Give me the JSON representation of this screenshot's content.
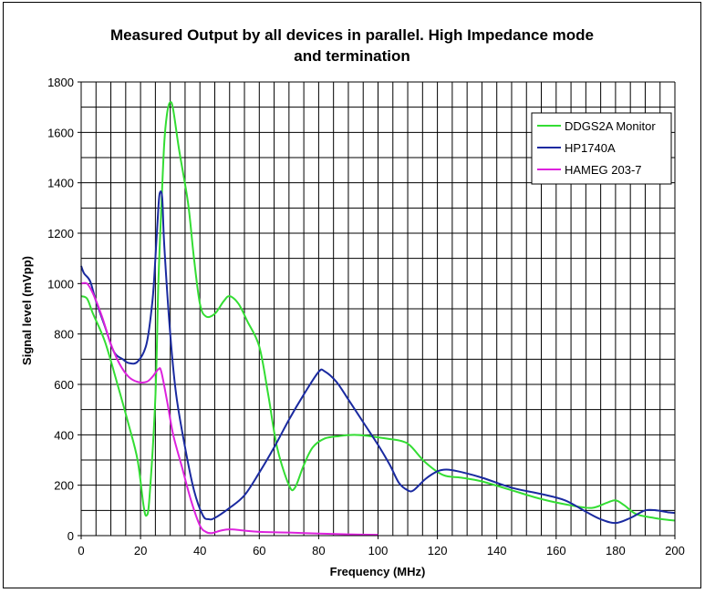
{
  "chart_data": {
    "type": "line",
    "title_line1": "Measured Output by all devices in parallel. High Impedance mode",
    "title_line2": "and termination",
    "xlabel": "Frequency (MHz)",
    "ylabel": "Signal level (mVpp)",
    "xlim": [
      0,
      200
    ],
    "ylim": [
      0,
      1800
    ],
    "xticks": [
      0,
      20,
      40,
      60,
      80,
      100,
      120,
      140,
      160,
      180,
      200
    ],
    "yticks": [
      0,
      200,
      400,
      600,
      800,
      1000,
      1200,
      1400,
      1600,
      1800
    ],
    "grid": true,
    "legend_position": "top-right",
    "series": [
      {
        "name": "DDGS2A Monitor",
        "color": "#33dd33",
        "points": [
          [
            0,
            950
          ],
          [
            2,
            940
          ],
          [
            4,
            880
          ],
          [
            8,
            770
          ],
          [
            12,
            610
          ],
          [
            16,
            440
          ],
          [
            19,
            300
          ],
          [
            21,
            120
          ],
          [
            22,
            80
          ],
          [
            23,
            150
          ],
          [
            25,
            550
          ],
          [
            26,
            1000
          ],
          [
            27,
            1300
          ],
          [
            28,
            1560
          ],
          [
            29,
            1680
          ],
          [
            30,
            1720
          ],
          [
            31,
            1690
          ],
          [
            33,
            1530
          ],
          [
            36,
            1320
          ],
          [
            38,
            1100
          ],
          [
            40,
            920
          ],
          [
            42,
            870
          ],
          [
            45,
            880
          ],
          [
            48,
            930
          ],
          [
            50,
            950
          ],
          [
            53,
            920
          ],
          [
            56,
            850
          ],
          [
            60,
            750
          ],
          [
            63,
            560
          ],
          [
            66,
            350
          ],
          [
            70,
            200
          ],
          [
            72,
            190
          ],
          [
            75,
            280
          ],
          [
            78,
            350
          ],
          [
            82,
            385
          ],
          [
            87,
            395
          ],
          [
            92,
            400
          ],
          [
            97,
            395
          ],
          [
            103,
            385
          ],
          [
            108,
            375
          ],
          [
            111,
            355
          ],
          [
            116,
            290
          ],
          [
            122,
            240
          ],
          [
            128,
            230
          ],
          [
            135,
            215
          ],
          [
            145,
            180
          ],
          [
            155,
            145
          ],
          [
            165,
            120
          ],
          [
            172,
            110
          ],
          [
            177,
            130
          ],
          [
            180,
            140
          ],
          [
            183,
            120
          ],
          [
            187,
            85
          ],
          [
            193,
            70
          ],
          [
            198,
            62
          ],
          [
            200,
            60
          ]
        ]
      },
      {
        "name": "HP1740A",
        "color": "#1a2aa0",
        "points": [
          [
            0,
            1070
          ],
          [
            1,
            1040
          ],
          [
            3,
            1010
          ],
          [
            5,
            930
          ],
          [
            8,
            830
          ],
          [
            11,
            730
          ],
          [
            14,
            700
          ],
          [
            16,
            685
          ],
          [
            19,
            690
          ],
          [
            22,
            760
          ],
          [
            24,
            930
          ],
          [
            25,
            1100
          ],
          [
            26,
            1300
          ],
          [
            26.5,
            1360
          ],
          [
            27.3,
            1340
          ],
          [
            28,
            1150
          ],
          [
            30,
            800
          ],
          [
            32,
            560
          ],
          [
            35,
            350
          ],
          [
            38,
            180
          ],
          [
            41,
            80
          ],
          [
            43,
            65
          ],
          [
            45,
            70
          ],
          [
            50,
            110
          ],
          [
            55,
            160
          ],
          [
            60,
            250
          ],
          [
            65,
            350
          ],
          [
            70,
            460
          ],
          [
            75,
            560
          ],
          [
            80,
            650
          ],
          [
            82,
            652
          ],
          [
            86,
            610
          ],
          [
            90,
            540
          ],
          [
            95,
            450
          ],
          [
            100,
            360
          ],
          [
            104,
            280
          ],
          [
            107,
            210
          ],
          [
            110,
            180
          ],
          [
            112,
            180
          ],
          [
            116,
            225
          ],
          [
            120,
            255
          ],
          [
            123,
            262
          ],
          [
            127,
            255
          ],
          [
            135,
            230
          ],
          [
            145,
            190
          ],
          [
            155,
            165
          ],
          [
            163,
            140
          ],
          [
            170,
            95
          ],
          [
            175,
            65
          ],
          [
            180,
            50
          ],
          [
            185,
            70
          ],
          [
            190,
            100
          ],
          [
            194,
            100
          ],
          [
            198,
            92
          ],
          [
            200,
            90
          ]
        ]
      },
      {
        "name": "HAMEG 203-7",
        "color": "#dd22dd",
        "points": [
          [
            0,
            1000
          ],
          [
            2,
            1000
          ],
          [
            4,
            960
          ],
          [
            7,
            870
          ],
          [
            10,
            760
          ],
          [
            13,
            680
          ],
          [
            16,
            630
          ],
          [
            19,
            610
          ],
          [
            22,
            610
          ],
          [
            24,
            630
          ],
          [
            26,
            660
          ],
          [
            27,
            650
          ],
          [
            29,
            530
          ],
          [
            31,
            400
          ],
          [
            34,
            270
          ],
          [
            37,
            140
          ],
          [
            40,
            40
          ],
          [
            42,
            15
          ],
          [
            44,
            10
          ],
          [
            47,
            20
          ],
          [
            50,
            25
          ],
          [
            55,
            20
          ],
          [
            60,
            15
          ],
          [
            70,
            12
          ],
          [
            80,
            8
          ],
          [
            90,
            5
          ],
          [
            100,
            3
          ]
        ]
      }
    ]
  }
}
